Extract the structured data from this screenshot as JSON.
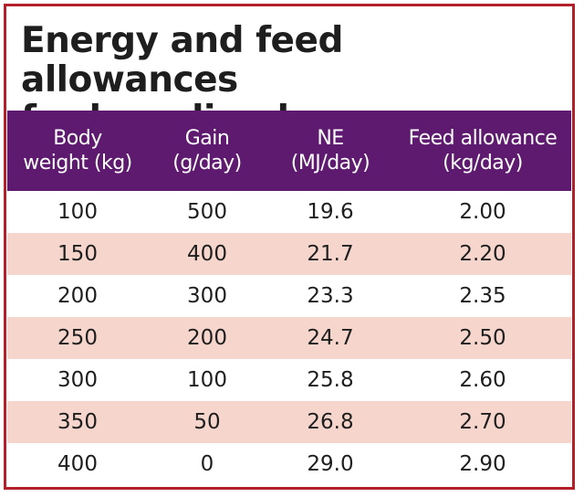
{
  "title": {
    "line1": "Energy and feed allowances",
    "line2": "for breeding boars"
  },
  "colors": {
    "border": "#b4202a",
    "header_bg": "#5e1a6f",
    "header_text": "#ffffff",
    "stripe": "#f6d6cc",
    "text": "#1e1e1e"
  },
  "table": {
    "headers": [
      {
        "line1": "Body",
        "line2": "weight (kg)"
      },
      {
        "line1": "Gain",
        "line2": "(g/day)"
      },
      {
        "line1": "NE",
        "line2": "(MJ/day)"
      },
      {
        "line1": "Feed allowance",
        "line2": "(kg/day)"
      }
    ],
    "rows": [
      [
        "100",
        "500",
        "19.6",
        "2.00"
      ],
      [
        "150",
        "400",
        "21.7",
        "2.20"
      ],
      [
        "200",
        "300",
        "23.3",
        "2.35"
      ],
      [
        "250",
        "200",
        "24.7",
        "2.50"
      ],
      [
        "300",
        "100",
        "25.8",
        "2.60"
      ],
      [
        "350",
        "50",
        "26.8",
        "2.70"
      ],
      [
        "400",
        "0",
        "29.0",
        "2.90"
      ]
    ]
  }
}
